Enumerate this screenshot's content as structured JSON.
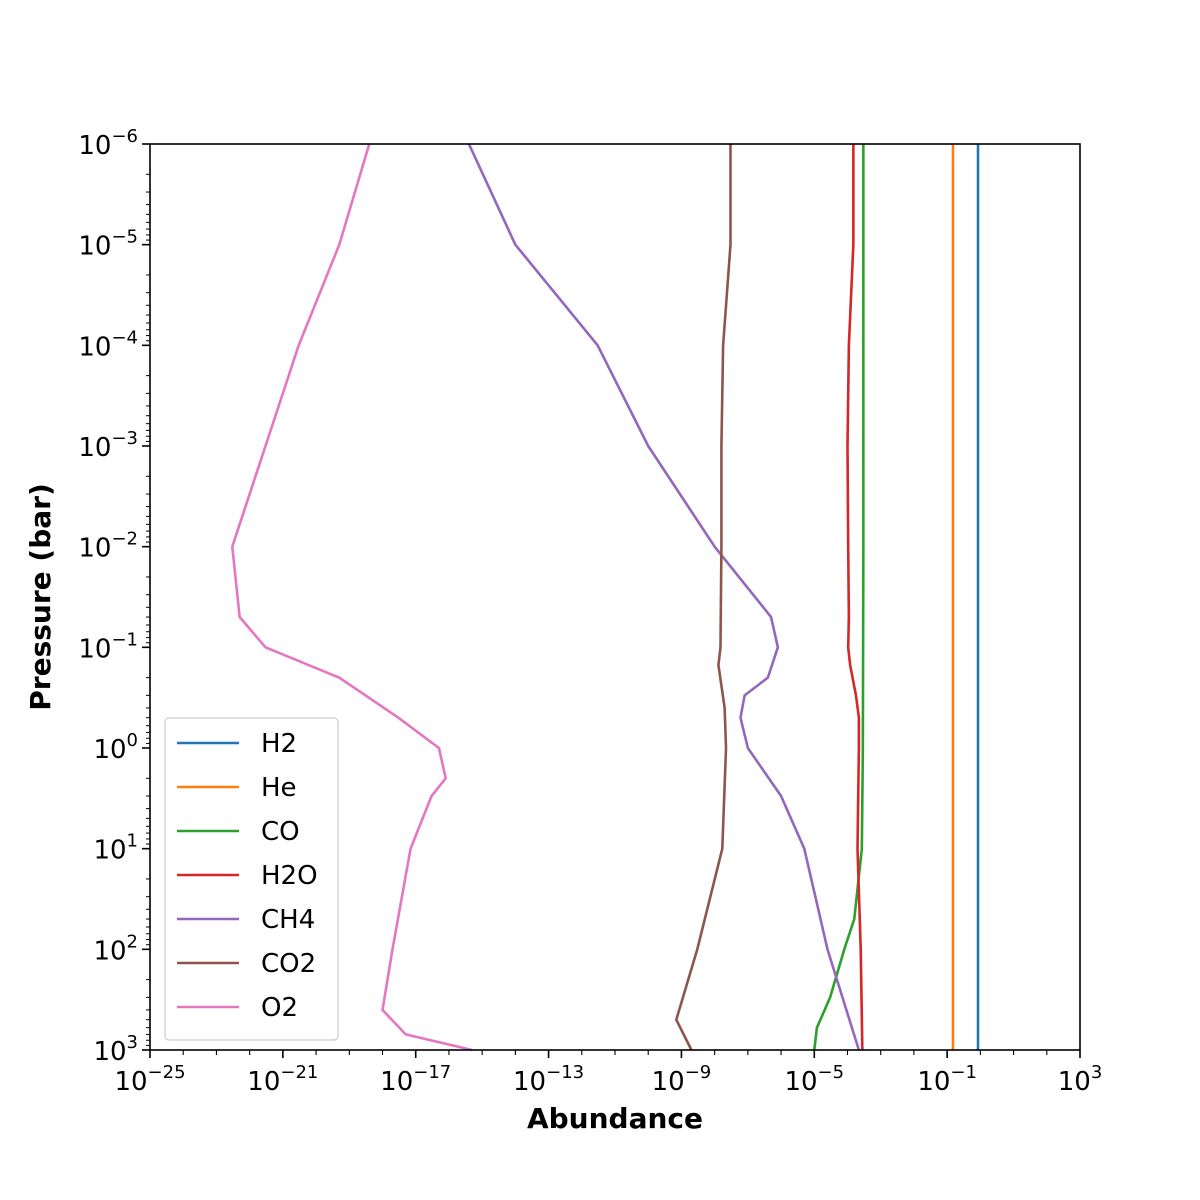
{
  "chart_data": {
    "type": "line",
    "xlabel": "Abundance",
    "ylabel": "Pressure (bar)",
    "xscale": "log",
    "yscale": "log",
    "y_inverted": true,
    "xlim": [
      1e-25,
      1000
    ],
    "ylim": [
      1000,
      1e-06
    ],
    "x_tick_labels": [
      {
        "value": 1e-25,
        "base": "10",
        "exp": "−25"
      },
      {
        "value": 1e-21,
        "base": "10",
        "exp": "−21"
      },
      {
        "value": 1e-17,
        "base": "10",
        "exp": "−17"
      },
      {
        "value": 1e-13,
        "base": "10",
        "exp": "−13"
      },
      {
        "value": 1e-09,
        "base": "10",
        "exp": "−9"
      },
      {
        "value": 1e-05,
        "base": "10",
        "exp": "−5"
      },
      {
        "value": 0.1,
        "base": "10",
        "exp": "−1"
      },
      {
        "value": 1000,
        "base": "10",
        "exp": "3"
      }
    ],
    "y_tick_labels": [
      {
        "value": 1e-06,
        "base": "10",
        "exp": "−6"
      },
      {
        "value": 1e-05,
        "base": "10",
        "exp": "−5"
      },
      {
        "value": 0.0001,
        "base": "10",
        "exp": "−4"
      },
      {
        "value": 0.001,
        "base": "10",
        "exp": "−3"
      },
      {
        "value": 0.01,
        "base": "10",
        "exp": "−2"
      },
      {
        "value": 0.1,
        "base": "10",
        "exp": "−1"
      },
      {
        "value": 1,
        "base": "10",
        "exp": "0"
      },
      {
        "value": 10,
        "base": "10",
        "exp": "1"
      },
      {
        "value": 100,
        "base": "10",
        "exp": "2"
      },
      {
        "value": 1000,
        "base": "10",
        "exp": "3"
      }
    ],
    "grid": false,
    "legend_position": "lower-left",
    "series": [
      {
        "name": "H2",
        "color": "#1f77b4",
        "points": [
          [
            0.85,
            1e-06
          ],
          [
            0.85,
            1000
          ]
        ]
      },
      {
        "name": "He",
        "color": "#ff7f0e",
        "points": [
          [
            0.15,
            1e-06
          ],
          [
            0.15,
            1000
          ]
        ]
      },
      {
        "name": "CO",
        "color": "#2ca02c",
        "points": [
          [
            0.0003,
            1e-06
          ],
          [
            0.0003,
            0.0001
          ],
          [
            0.0003,
            0.01
          ],
          [
            0.00029,
            1
          ],
          [
            0.00027,
            10
          ],
          [
            0.00016,
            50
          ],
          [
            8e-05,
            100
          ],
          [
            3e-05,
            300
          ],
          [
            1.2e-05,
            600
          ],
          [
            1e-05,
            1000
          ]
        ]
      },
      {
        "name": "H2O",
        "color": "#d62728",
        "points": [
          [
            0.00015,
            1e-06
          ],
          [
            0.00015,
            1e-05
          ],
          [
            0.00011,
            0.0001
          ],
          [
            0.0001,
            0.001
          ],
          [
            0.000105,
            0.01
          ],
          [
            0.00011,
            0.05
          ],
          [
            0.000105,
            0.1
          ],
          [
            0.00012,
            0.15
          ],
          [
            0.00018,
            0.3
          ],
          [
            0.00022,
            0.5
          ],
          [
            0.00022,
            1
          ],
          [
            0.0002,
            10
          ],
          [
            0.00025,
            100
          ],
          [
            0.00028,
            1000
          ]
        ]
      },
      {
        "name": "CH4",
        "color": "#9467bd",
        "points": [
          [
            4e-16,
            1e-06
          ],
          [
            1e-14,
            1e-05
          ],
          [
            3e-12,
            0.0001
          ],
          [
            1e-10,
            0.001
          ],
          [
            1e-08,
            0.01
          ],
          [
            5e-07,
            0.05
          ],
          [
            8e-07,
            0.1
          ],
          [
            4e-07,
            0.2
          ],
          [
            8e-08,
            0.3
          ],
          [
            6e-08,
            0.5
          ],
          [
            1e-07,
            1
          ],
          [
            1e-06,
            3
          ],
          [
            5e-06,
            10
          ],
          [
            2.5e-05,
            100
          ],
          [
            0.00022,
            1000
          ]
        ]
      },
      {
        "name": "CO2",
        "color": "#8c564b",
        "points": [
          [
            3e-08,
            1e-06
          ],
          [
            3e-08,
            1e-05
          ],
          [
            1.8e-08,
            0.0001
          ],
          [
            1.6e-08,
            0.001
          ],
          [
            1.6e-08,
            0.01
          ],
          [
            1.5e-08,
            0.1
          ],
          [
            1.3e-08,
            0.15
          ],
          [
            2e-08,
            0.4
          ],
          [
            2.2e-08,
            1
          ],
          [
            1.7e-08,
            10
          ],
          [
            3e-09,
            100
          ],
          [
            7e-10,
            500
          ],
          [
            2e-09,
            1000
          ]
        ]
      },
      {
        "name": "O2",
        "color": "#e377c2",
        "points": [
          [
            4e-19,
            1e-06
          ],
          [
            5e-20,
            1e-05
          ],
          [
            3e-21,
            0.0001
          ],
          [
            3e-22,
            0.001
          ],
          [
            3e-23,
            0.01
          ],
          [
            5e-23,
            0.05
          ],
          [
            3e-22,
            0.1
          ],
          [
            5e-20,
            0.2
          ],
          [
            3e-18,
            0.5
          ],
          [
            5e-17,
            1
          ],
          [
            8e-17,
            2
          ],
          [
            3e-17,
            3
          ],
          [
            7e-18,
            10
          ],
          [
            2e-18,
            100
          ],
          [
            1e-18,
            400
          ],
          [
            5e-18,
            700
          ],
          [
            5e-16,
            1000
          ]
        ]
      }
    ]
  }
}
